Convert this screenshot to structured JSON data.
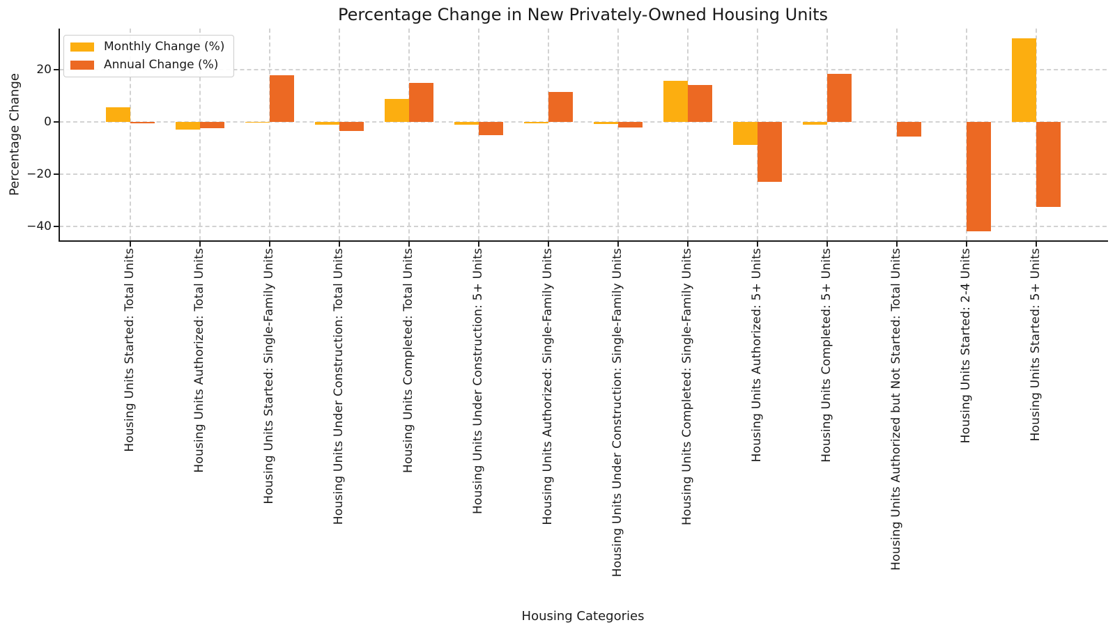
{
  "figure": {
    "background": "#ffffff",
    "spine_color": "#1a1a1a",
    "grid_color": "#d2d2d2"
  },
  "chart_data": {
    "type": "bar",
    "title": "Percentage Change in New Privately-Owned Housing Units",
    "xlabel": "Housing Categories",
    "ylabel": "Percentage Change",
    "ylim": [
      -45.3,
      35.7
    ],
    "y_ticks": [
      20,
      0,
      -20,
      -40
    ],
    "y_tick_labels": [
      "20",
      "0",
      "−20",
      "−40"
    ],
    "grid": "horizontal and vertical, dashed, light gray",
    "legend_position": "upper left",
    "bar_group": "two bars per category (monthly left, annual right)",
    "categories": [
      "Housing Units Started: Total Units",
      "Housing Units Authorized: Total Units",
      "Housing Units Started: Single-Family Units",
      "Housing Units Under Construction: Total Units",
      "Housing Units Completed: Total Units",
      "Housing Units Under Construction: 5+ Units",
      "Housing Units Authorized: Single-Family Units",
      "Housing Units Under Construction: Single-Family Units",
      "Housing Units Completed: Single-Family Units",
      "Housing Units Authorized: 5+ Units",
      "Housing Units Completed: 5+ Units",
      "Housing Units Authorized but Not Started: Total Units",
      "Housing Units Started: 2-4 Units",
      "Housing Units Started: 5+ Units"
    ],
    "series": [
      {
        "name": "Monthly Change (%)",
        "color": "#FCAE10",
        "values": [
          5.7,
          -3.0,
          -0.4,
          -1.2,
          8.7,
          -1.2,
          -0.6,
          -0.9,
          15.7,
          -8.8,
          -1.1,
          0.0,
          0.0,
          32.0
        ]
      },
      {
        "name": "Annual Change (%)",
        "color": "#EC6923",
        "values": [
          -0.6,
          -2.3,
          17.9,
          -3.6,
          14.8,
          -5.1,
          11.4,
          -2.2,
          14.0,
          -22.8,
          18.3,
          -5.6,
          -41.9,
          -32.6
        ]
      }
    ]
  }
}
